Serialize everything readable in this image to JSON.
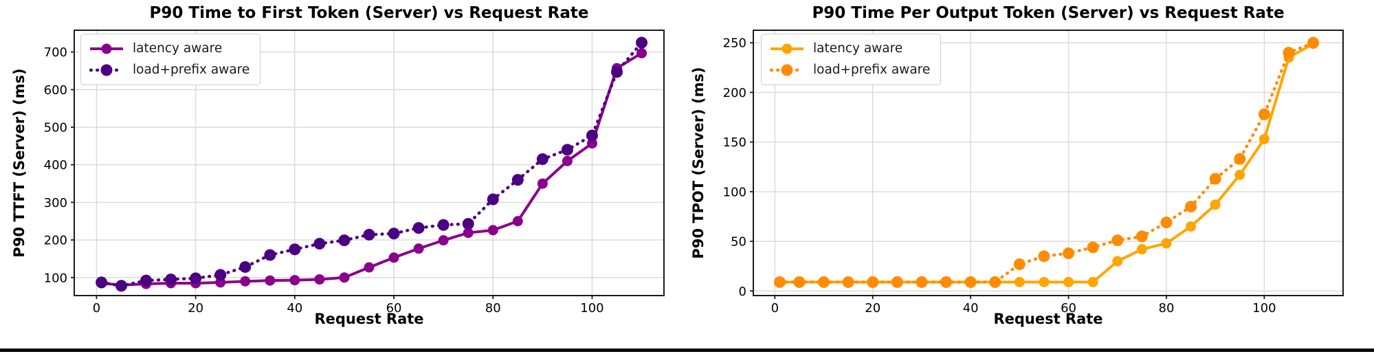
{
  "page": {
    "background": "#ffffff",
    "bottom_bar_color": "#0a0a0a"
  },
  "chart_data": [
    {
      "type": "line",
      "title": "P90 Time to First Token (Server) vs Request Rate",
      "xlabel": "Request Rate",
      "ylabel": "P90 TTFT (Server) (ms)",
      "x": [
        1,
        5,
        10,
        15,
        20,
        25,
        30,
        35,
        40,
        45,
        50,
        55,
        60,
        65,
        70,
        75,
        80,
        85,
        90,
        95,
        100,
        105,
        110
      ],
      "series": [
        {
          "name": "latency aware",
          "style": "solid",
          "color": "#8B008B",
          "values": [
            85,
            80,
            83,
            85,
            85,
            87,
            90,
            92,
            93,
            95,
            100,
            127,
            153,
            177,
            199,
            219,
            226,
            250,
            350,
            410,
            457,
            657,
            697
          ]
        },
        {
          "name": "load+prefix aware",
          "style": "dotted",
          "color": "#4B0082",
          "values": [
            87,
            78,
            92,
            95,
            98,
            107,
            128,
            160,
            175,
            190,
            199,
            214,
            217,
            232,
            240,
            243,
            308,
            360,
            415,
            440,
            478,
            647,
            725
          ]
        }
      ],
      "xticks": [
        0,
        20,
        40,
        60,
        80,
        100
      ],
      "yticks": [
        100,
        200,
        300,
        400,
        500,
        600,
        700
      ],
      "xlim": [
        -4.5,
        114.5
      ],
      "ylim": [
        52,
        758
      ],
      "grid": true,
      "legend_position": "upper left"
    },
    {
      "type": "line",
      "title": "P90 Time Per Output Token (Server) vs Request Rate",
      "xlabel": "Request Rate",
      "ylabel": "P90 TPOT (Server) (ms)",
      "x": [
        1,
        5,
        10,
        15,
        20,
        25,
        30,
        35,
        40,
        45,
        50,
        55,
        60,
        65,
        70,
        75,
        80,
        85,
        90,
        95,
        100,
        105,
        110
      ],
      "series": [
        {
          "name": "latency aware",
          "style": "solid",
          "color": "#FFA500",
          "values": [
            9,
            9,
            9,
            9,
            9,
            9,
            9,
            9,
            9,
            9,
            9,
            9,
            9,
            9,
            30,
            42,
            48,
            65,
            87,
            117,
            153,
            235,
            249
          ]
        },
        {
          "name": "load+prefix aware",
          "style": "dotted",
          "color": "#FF8C00",
          "values": [
            9,
            9,
            9,
            9,
            9,
            9,
            9,
            9,
            9,
            9,
            27,
            35,
            38,
            44,
            51,
            55,
            69,
            85,
            113,
            133,
            178,
            240,
            250
          ]
        }
      ],
      "xticks": [
        0,
        20,
        40,
        60,
        80,
        100
      ],
      "yticks": [
        0,
        50,
        100,
        150,
        200,
        250
      ],
      "xlim": [
        -4.4,
        116.1
      ],
      "ylim": [
        -4.6,
        262.6
      ],
      "grid": true,
      "legend_position": "upper left"
    }
  ]
}
